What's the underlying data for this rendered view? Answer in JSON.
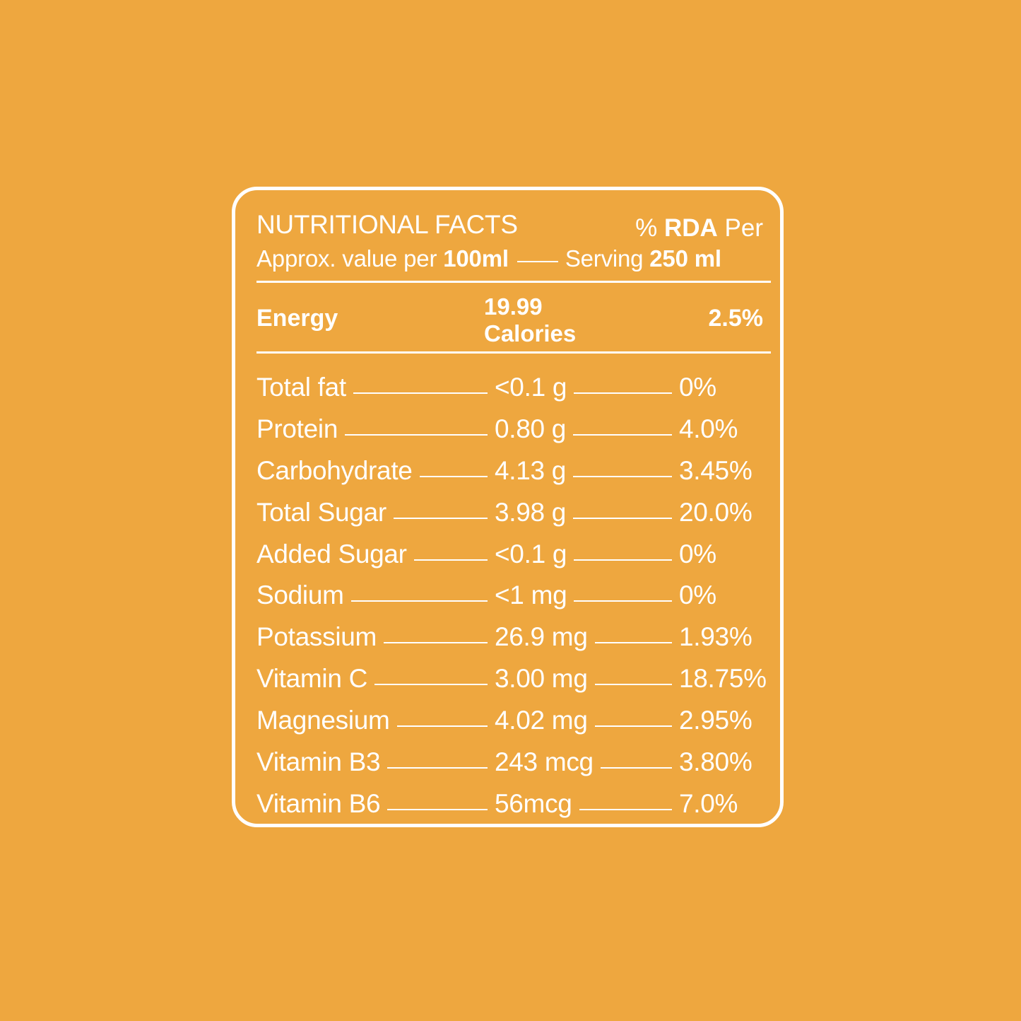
{
  "colors": {
    "background": "#EEA73F",
    "foreground": "#FFFFFF"
  },
  "header": {
    "title": "NUTRITIONAL FACTS",
    "rda_prefix": "%",
    "rda_bold": "RDA",
    "rda_suffix": "Per",
    "approx_prefix": "Approx. value per",
    "approx_bold": "100ml",
    "serving_prefix": "Serving",
    "serving_bold": "250 ml"
  },
  "energy": {
    "label": "Energy",
    "value_line1": "19.99",
    "value_line2": "Calories",
    "rda": "2.5%"
  },
  "rows": [
    {
      "nutrient": "Total fat",
      "amount": "<0.1 g",
      "rda": "0%"
    },
    {
      "nutrient": "Protein",
      "amount": "0.80 g",
      "rda": "4.0%"
    },
    {
      "nutrient": "Carbohydrate",
      "amount": "4.13 g",
      "rda": "3.45%"
    },
    {
      "nutrient": "Total Sugar",
      "amount": "3.98 g",
      "rda": "20.0%"
    },
    {
      "nutrient": "Added Sugar",
      "amount": "<0.1 g",
      "rda": "0%"
    },
    {
      "nutrient": "Sodium",
      "amount": "<1 mg",
      "rda": "0%"
    },
    {
      "nutrient": "Potassium",
      "amount": "26.9 mg",
      "rda": "1.93%"
    },
    {
      "nutrient": "Vitamin C",
      "amount": "3.00 mg",
      "rda": "18.75%"
    },
    {
      "nutrient": "Magnesium",
      "amount": "4.02 mg",
      "rda": "2.95%"
    },
    {
      "nutrient": "Vitamin B3",
      "amount": "243 mcg",
      "rda": "3.80%"
    },
    {
      "nutrient": "Vitamin B6",
      "amount": "56mcg",
      "rda": "7.0%"
    }
  ]
}
